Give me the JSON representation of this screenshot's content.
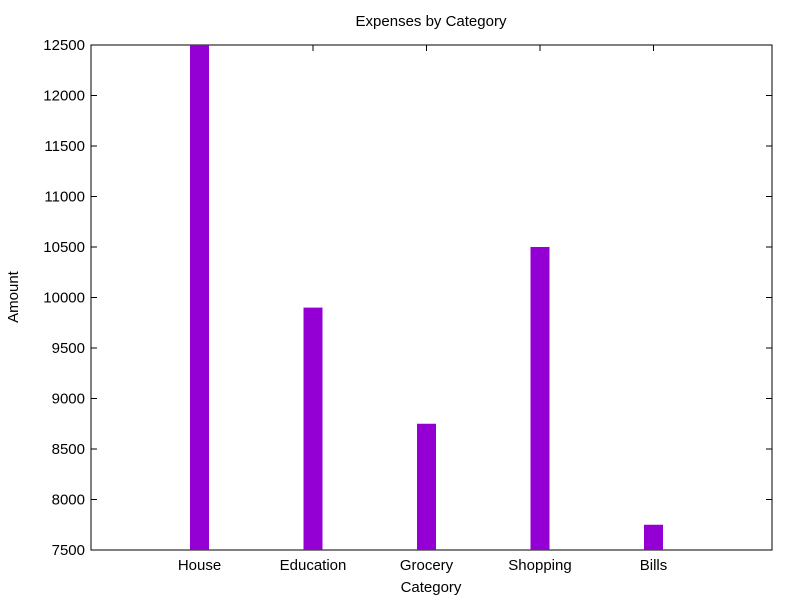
{
  "chart_data": {
    "type": "bar",
    "title": "Expenses by Category",
    "xlabel": "Category",
    "ylabel": "Amount",
    "categories": [
      "House",
      "Education",
      "Grocery",
      "Shopping",
      "Bills"
    ],
    "values": [
      12500,
      9900,
      8750,
      10500,
      7750
    ],
    "ylim": [
      7500,
      12500
    ],
    "yticks": [
      "7500",
      "8000",
      "8500",
      "9000",
      "9500",
      "10000",
      "10500",
      "11000",
      "11500",
      "12000",
      "12500"
    ],
    "grid": false,
    "legend": "none",
    "bar_color": "#9400D3"
  }
}
